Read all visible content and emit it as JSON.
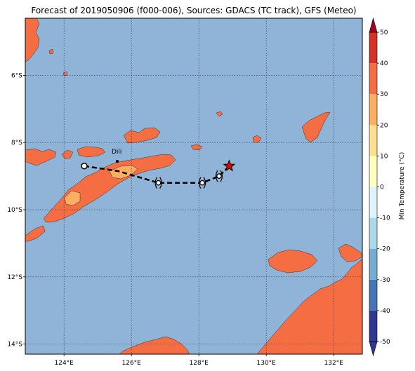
{
  "title": "Forecast of 2019050906 (f000-006), Sources: GDACS (TC track), GFS (Meteo)",
  "map": {
    "lon_range": [
      122.85,
      132.85
    ],
    "lat_range": [
      -14.3,
      -4.3
    ],
    "lon_ticks": [
      {
        "value": 124,
        "label": "124°E"
      },
      {
        "value": 126,
        "label": "126°E"
      },
      {
        "value": 128,
        "label": "128°E"
      },
      {
        "value": 130,
        "label": "130°E"
      },
      {
        "value": 132,
        "label": "132°E"
      }
    ],
    "lat_ticks": [
      {
        "value": -6,
        "label": "6°S"
      },
      {
        "value": -8,
        "label": "8°S"
      },
      {
        "value": -10,
        "label": "10°S"
      },
      {
        "value": -12,
        "label": "12°S"
      },
      {
        "value": -14,
        "label": "14°S"
      }
    ],
    "grid": true,
    "colors": {
      "ocean": "#90b4d8",
      "land_warm": "#f46d43",
      "land_mild": "#fdae61",
      "land_cool": "#fee090",
      "coastline": "#333333"
    },
    "city_label": "Dili",
    "track": {
      "points": [
        {
          "lon": 124.6,
          "lat": -8.7,
          "kind": "circle"
        },
        {
          "lon": 125.6,
          "lat": -8.85
        },
        {
          "lon": 126.8,
          "lat": -9.2,
          "kind": "cyclone"
        },
        {
          "lon": 128.1,
          "lat": -9.2,
          "kind": "cyclone"
        },
        {
          "lon": 128.6,
          "lat": -9.0,
          "kind": "cyclone"
        },
        {
          "lon": 128.9,
          "lat": -8.7,
          "kind": "star"
        }
      ],
      "marker_color": "#e00000"
    }
  },
  "colorbar": {
    "label": "Min Temperature (°C)",
    "range": [
      -50,
      50
    ],
    "levels": [
      -50,
      -40,
      -30,
      -20,
      -10,
      0,
      10,
      20,
      30,
      40,
      50
    ],
    "colors": [
      "#313695",
      "#4575b4",
      "#74add1",
      "#abd9e9",
      "#e0f3f8",
      "#ffffbf",
      "#fee090",
      "#fdae61",
      "#f46d43",
      "#d73027",
      "#a50026"
    ],
    "tick_labels": [
      "-50",
      "-40",
      "-30",
      "-20",
      "-10",
      "0",
      "10",
      "20",
      "30",
      "40",
      "50"
    ]
  }
}
